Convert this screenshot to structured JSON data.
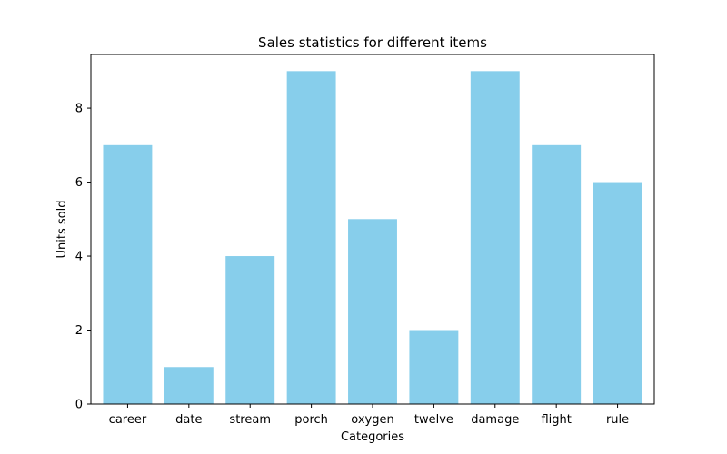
{
  "chart_data": {
    "type": "bar",
    "title": "Sales statistics for different items",
    "xlabel": "Categories",
    "ylabel": "Units sold",
    "categories": [
      "career",
      "date",
      "stream",
      "porch",
      "oxygen",
      "twelve",
      "damage",
      "flight",
      "rule"
    ],
    "values": [
      7,
      1,
      4,
      9,
      5,
      2,
      9,
      7,
      6
    ],
    "ylim": [
      0,
      9.45
    ],
    "yticks": [
      0,
      2,
      4,
      6,
      8
    ],
    "grid": false,
    "legend": "none",
    "bar_color": "#87ceeb"
  }
}
